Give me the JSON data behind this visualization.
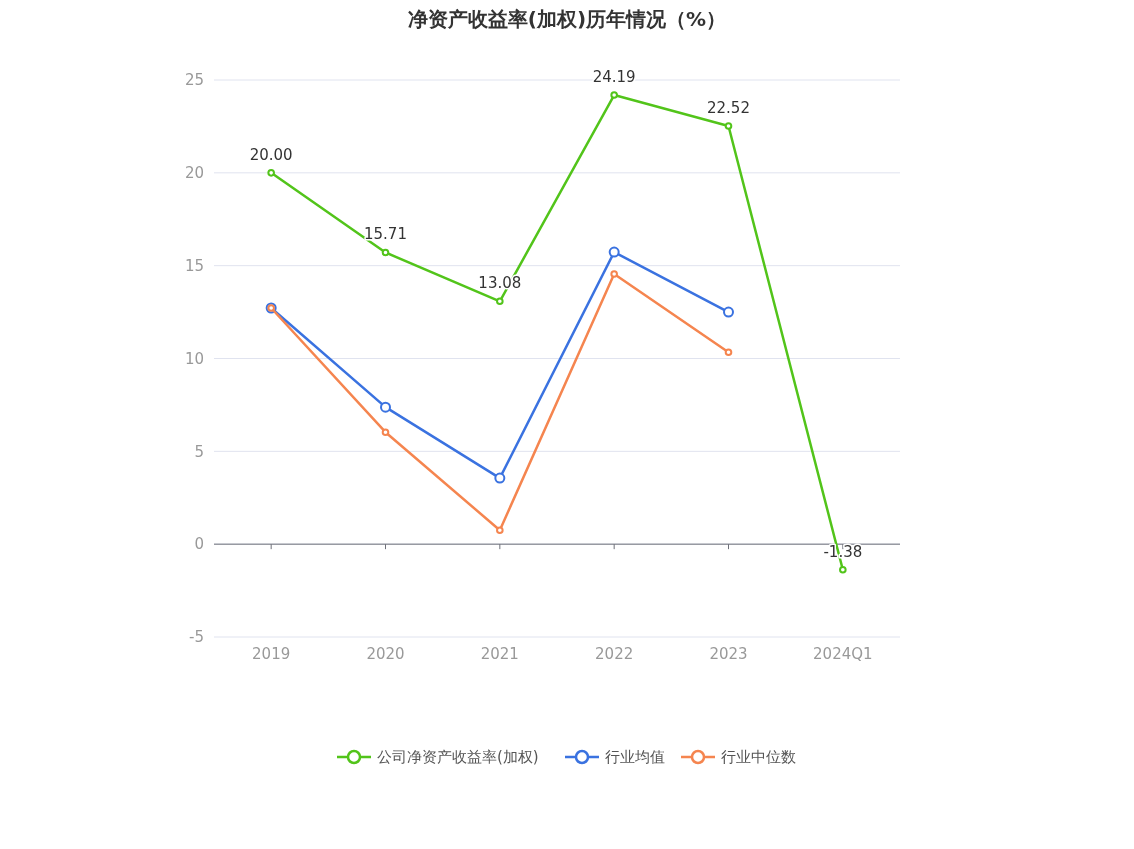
{
  "chart_data": {
    "type": "line",
    "title": "净资产收益率(加权)历年情况（%）",
    "categories": [
      "2019",
      "2020",
      "2021",
      "2022",
      "2023",
      "2024Q1"
    ],
    "series": [
      {
        "name": "公司净资产收益率(加权)",
        "color": "#52c41a",
        "values": [
          20.0,
          15.71,
          13.08,
          24.19,
          22.52,
          -1.38
        ],
        "value_labels": [
          "20.00",
          "15.71",
          "13.08",
          "24.19",
          "22.52",
          "-1.38"
        ]
      },
      {
        "name": "行业均值",
        "color": "#3a72e0",
        "values": [
          12.72,
          7.38,
          3.56,
          15.73,
          12.5,
          null
        ]
      },
      {
        "name": "行业中位数",
        "color": "#f5854f",
        "values": [
          12.72,
          6.03,
          0.75,
          14.55,
          10.34,
          null
        ]
      }
    ],
    "ylim": [
      -5,
      25
    ],
    "yticks": [
      -5,
      0,
      5,
      10,
      15,
      20,
      25
    ],
    "grid": "y",
    "legend": "bottom",
    "marker": "circle",
    "line_style": "solid"
  }
}
